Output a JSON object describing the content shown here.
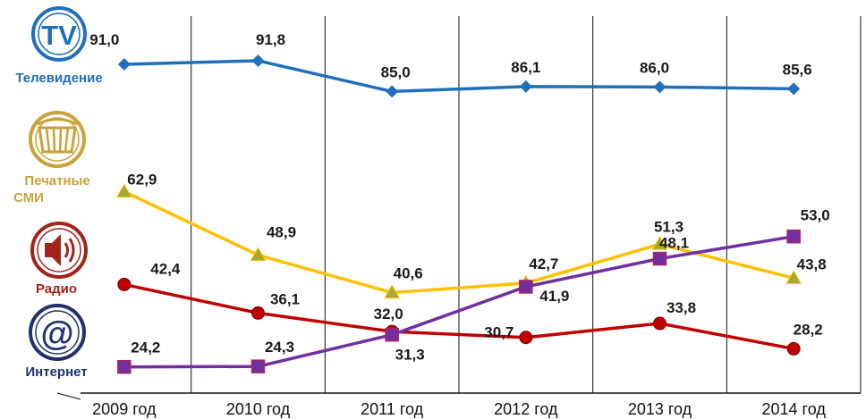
{
  "chart_data": {
    "type": "line",
    "categories": [
      "2009 год",
      "2010 год",
      "2011 год",
      "2012 год",
      "2013 год",
      "2014 год"
    ],
    "ylim": [
      20,
      95
    ],
    "grid": "vertical",
    "legend": "left icons",
    "series": [
      {
        "name": "Телевидение",
        "color": "#1f6fbd",
        "marker": "diamond",
        "values": [
          91.0,
          91.8,
          85.0,
          86.1,
          86.0,
          85.6
        ],
        "labels": [
          "91,0",
          "91,8",
          "85,0",
          "86,1",
          "86,0",
          "85,6"
        ]
      },
      {
        "name": "Печатные СМИ",
        "color": "#ffc000",
        "marker": "triangle",
        "values": [
          62.9,
          48.9,
          40.6,
          42.7,
          51.3,
          43.8
        ],
        "labels": [
          "62,9",
          "48,9",
          "40,6",
          "42,7",
          "51,3",
          "43,8"
        ]
      },
      {
        "name": "Радио",
        "color": "#c00000",
        "marker": "circle",
        "values": [
          42.4,
          36.1,
          32.0,
          30.7,
          33.8,
          28.2
        ],
        "labels": [
          "42,4",
          "36,1",
          "32,0",
          "30,7",
          "33,8",
          "28,2"
        ]
      },
      {
        "name": "Интернет",
        "color": "#7030a0",
        "marker": "square",
        "values": [
          24.2,
          24.3,
          31.3,
          41.9,
          48.1,
          53.0
        ],
        "labels": [
          "24,2",
          "24,3",
          "31,3",
          "41,9",
          "48,1",
          "53,0"
        ]
      }
    ]
  },
  "media": {
    "tv": {
      "icon": "tv-icon",
      "text": "TV",
      "label": "Телевидение",
      "color": "#1f6fbd"
    },
    "print": {
      "icon": "newspaper-icon",
      "label_line1": "Печатные",
      "label_line2": "СМИ",
      "color": "#c8a23a"
    },
    "radio": {
      "icon": "speaker-icon",
      "label": "Радио",
      "color": "#a0241c"
    },
    "internet": {
      "icon": "at-sign-icon",
      "text": "@",
      "label": "Интернет",
      "color": "#20316e"
    }
  }
}
